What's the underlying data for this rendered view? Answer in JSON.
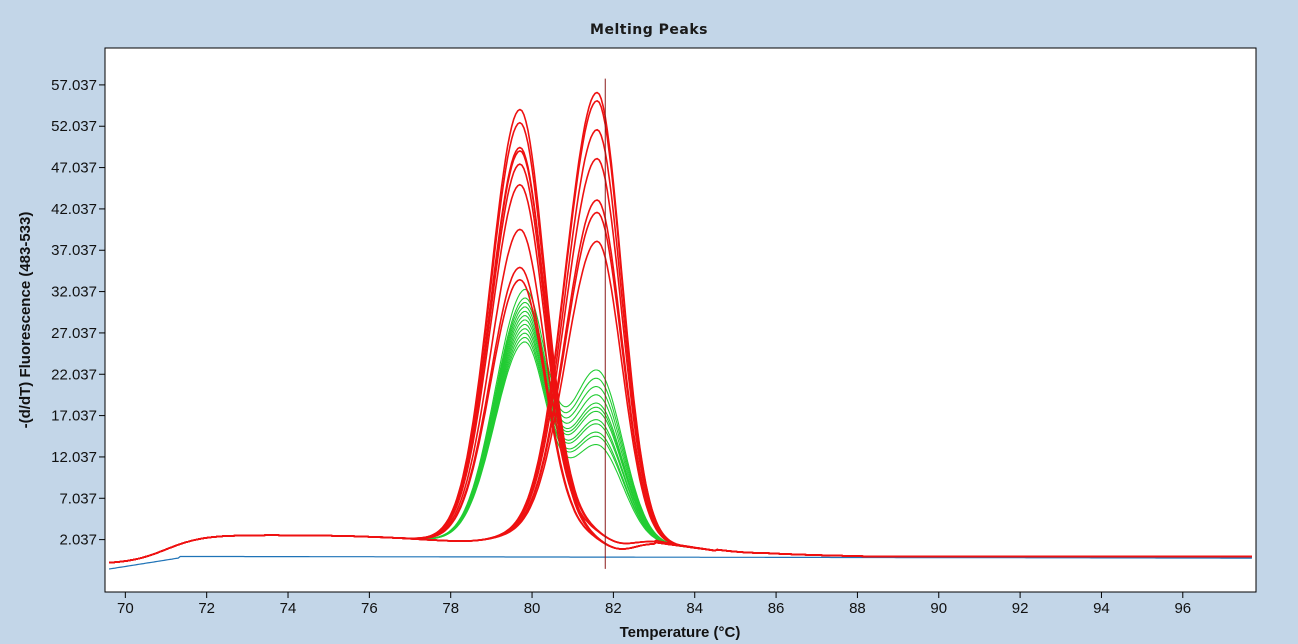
{
  "window": {
    "background": "#c3d6e8",
    "plot_background": "#ffffff"
  },
  "chart_data": {
    "type": "line",
    "title": "Melting Peaks",
    "xlabel": "Temperature (°C)",
    "ylabel": "-(d/dT) Fluorescence (483-533)",
    "xlim": [
      69.5,
      97.8
    ],
    "ylim": [
      -4.3,
      61.5
    ],
    "x_ticks": [
      70,
      72,
      74,
      76,
      78,
      80,
      82,
      84,
      86,
      88,
      90,
      92,
      94,
      96
    ],
    "y_ticks": [
      2.037,
      7.037,
      12.037,
      17.037,
      22.037,
      27.037,
      32.037,
      37.037,
      42.037,
      47.037,
      52.037,
      57.037
    ],
    "y_tick_labels": [
      "2.037",
      "7.037",
      "12.037",
      "17.037",
      "22.037",
      "27.037",
      "32.037",
      "37.037",
      "42.037",
      "47.037",
      "52.037",
      "57.037"
    ],
    "x_tick_labels": [
      "70",
      "72",
      "74",
      "76",
      "78",
      "80",
      "82",
      "84",
      "86",
      "88",
      "90",
      "92",
      "94",
      "96"
    ],
    "grid": false,
    "cursor_x": 81.8,
    "colors": {
      "red": "#ee1111",
      "green": "#22cc33",
      "blue": "#1f73b7",
      "cursor": "#8b1a1a"
    },
    "series_groups": [
      {
        "color": "red",
        "profile": "low_peak",
        "peaks": [
          {
            "x": 79.7,
            "y": 53.5
          },
          {
            "x": 79.7,
            "y": 52.0
          },
          {
            "x": 79.7,
            "y": 49.0
          },
          {
            "x": 79.7,
            "y": 48.5
          },
          {
            "x": 79.7,
            "y": 47.0
          },
          {
            "x": 79.7,
            "y": 44.5
          },
          {
            "x": 79.7,
            "y": 39.0
          },
          {
            "x": 79.7,
            "y": 34.5
          },
          {
            "x": 79.7,
            "y": 33.0
          }
        ]
      },
      {
        "color": "red",
        "profile": "high_peak",
        "peaks": [
          {
            "x": 81.6,
            "y": 56.5
          },
          {
            "x": 81.6,
            "y": 55.5
          },
          {
            "x": 81.6,
            "y": 52.0
          },
          {
            "x": 81.6,
            "y": 48.5
          },
          {
            "x": 81.6,
            "y": 43.5
          },
          {
            "x": 81.6,
            "y": 42.0
          },
          {
            "x": 81.6,
            "y": 38.5
          }
        ]
      },
      {
        "color": "green",
        "profile": "double_peak",
        "peaks": [
          {
            "p1": 32.0,
            "p2": 24.0
          },
          {
            "p1": 31.0,
            "p2": 23.0
          },
          {
            "p1": 30.5,
            "p2": 22.0
          },
          {
            "p1": 30.0,
            "p2": 21.0
          },
          {
            "p1": 29.5,
            "p2": 20.0
          },
          {
            "p1": 29.0,
            "p2": 19.5
          },
          {
            "p1": 28.5,
            "p2": 19.0
          },
          {
            "p1": 28.0,
            "p2": 18.0
          },
          {
            "p1": 27.5,
            "p2": 17.5
          },
          {
            "p1": 27.0,
            "p2": 16.5
          },
          {
            "p1": 26.5,
            "p2": 16.0
          },
          {
            "p1": 26.0,
            "p2": 15.0
          }
        ]
      },
      {
        "color": "blue",
        "profile": "flat",
        "peaks": [
          {
            "y": 0.0
          }
        ]
      }
    ]
  }
}
